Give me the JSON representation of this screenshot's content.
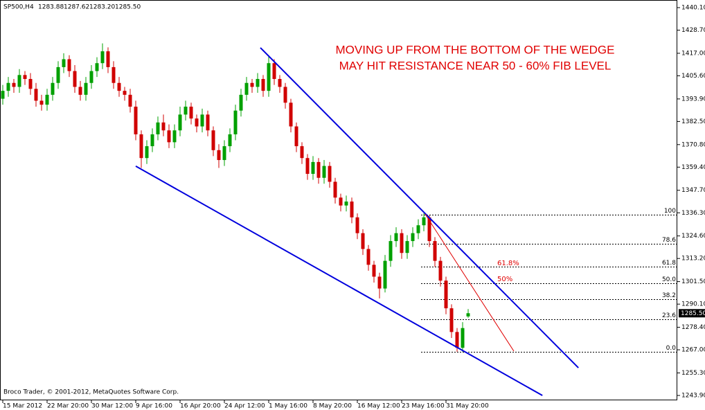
{
  "header": {
    "symbol": "SP500,H4",
    "open": "1283.88",
    "high": "1287.62",
    "low": "1283.20",
    "close": "1285.50"
  },
  "footer": "Broco Trader, © 2001-2012, MetaQuotes Software Corp.",
  "chart_data": {
    "type": "candlestick",
    "up_color": "#00a000",
    "down_color": "#d00000",
    "annotations": [
      "MOVING UP FROM THE BOTTOM OF THE WEDGE",
      "MAY HIT RESISTANCE NEAR 50 - 60% FIB LEVEL",
      "61.8%",
      "50%"
    ],
    "categories": [
      "15 Mar 2012",
      null,
      null,
      null,
      null,
      null,
      null,
      null,
      "22 Mar 20:00",
      null,
      null,
      null,
      null,
      null,
      null,
      null,
      "30 Mar 12:00",
      null,
      null,
      null,
      null,
      null,
      null,
      null,
      "9 Apr 16:00",
      null,
      null,
      null,
      null,
      null,
      null,
      null,
      "16 Apr 20:00",
      null,
      null,
      null,
      null,
      null,
      null,
      null,
      "24 Apr 12:00",
      null,
      null,
      null,
      null,
      null,
      null,
      null,
      "1 May 16:00",
      null,
      null,
      null,
      null,
      null,
      null,
      null,
      "8 May 20:00",
      null,
      null,
      null,
      null,
      null,
      null,
      null,
      "16 May 12:00",
      null,
      null,
      null,
      null,
      null,
      null,
      null,
      "23 May 16:00",
      null,
      null,
      null,
      null,
      null,
      null,
      null,
      "31 May 20:00",
      null,
      null,
      null,
      null
    ],
    "open": [
      1394,
      1398,
      1402,
      1400,
      1406,
      1404,
      1399,
      1393,
      1391,
      1396,
      1402,
      1410,
      1414,
      1408,
      1400,
      1396,
      1402,
      1408,
      1412,
      1418,
      1410,
      1402,
      1398,
      1396,
      1390,
      1376,
      1364,
      1370,
      1376,
      1382,
      1378,
      1372,
      1378,
      1386,
      1390,
      1384,
      1380,
      1386,
      1378,
      1368,
      1363,
      1370,
      1376,
      1388,
      1396,
      1402,
      1400,
      1404,
      1398,
      1412,
      1404,
      1400,
      1392,
      1380,
      1370,
      1364,
      1356,
      1362,
      1354,
      1360,
      1352,
      1344,
      1340,
      1342,
      1334,
      1326,
      1318,
      1310,
      1304,
      1298,
      1312,
      1322,
      1326,
      1316,
      1322,
      1326,
      1330,
      1334,
      1322,
      1312,
      1302,
      1288,
      1276,
      1268,
      1283.88
    ],
    "high": [
      1401,
      1405,
      1404,
      1409,
      1408,
      1407,
      1402,
      1396,
      1399,
      1405,
      1413,
      1417,
      1416,
      1411,
      1403,
      1405,
      1411,
      1415,
      1422,
      1420,
      1413,
      1405,
      1400,
      1399,
      1393,
      1378,
      1373,
      1379,
      1385,
      1386,
      1381,
      1381,
      1390,
      1393,
      1392,
      1386,
      1389,
      1388,
      1380,
      1371,
      1373,
      1379,
      1391,
      1399,
      1405,
      1404,
      1407,
      1406,
      1416,
      1414,
      1406,
      1402,
      1394,
      1382,
      1372,
      1366,
      1365,
      1364,
      1363,
      1362,
      1354,
      1346,
      1345,
      1344,
      1336,
      1328,
      1320,
      1312,
      1306,
      1315,
      1325,
      1329,
      1328,
      1325,
      1329,
      1333,
      1336,
      1335,
      1324,
      1314,
      1304,
      1290,
      1278,
      1281,
      1287.62
    ],
    "low": [
      1391,
      1395,
      1397,
      1397,
      1401,
      1396,
      1390,
      1388,
      1388,
      1393,
      1399,
      1407,
      1405,
      1397,
      1393,
      1393,
      1399,
      1405,
      1409,
      1407,
      1399,
      1395,
      1393,
      1387,
      1373,
      1359,
      1361,
      1367,
      1373,
      1375,
      1369,
      1369,
      1375,
      1383,
      1381,
      1377,
      1377,
      1375,
      1365,
      1359,
      1360,
      1367,
      1373,
      1385,
      1393,
      1397,
      1397,
      1395,
      1395,
      1401,
      1397,
      1389,
      1377,
      1367,
      1361,
      1353,
      1353,
      1351,
      1351,
      1349,
      1341,
      1337,
      1337,
      1331,
      1323,
      1315,
      1307,
      1301,
      1293,
      1296,
      1309,
      1319,
      1313,
      1313,
      1319,
      1323,
      1327,
      1319,
      1309,
      1299,
      1285,
      1273,
      1266,
      1266,
      1283.2
    ],
    "close": [
      1398,
      1402,
      1400,
      1406,
      1404,
      1399,
      1393,
      1391,
      1396,
      1402,
      1410,
      1414,
      1408,
      1400,
      1396,
      1402,
      1408,
      1412,
      1418,
      1410,
      1402,
      1398,
      1396,
      1390,
      1376,
      1364,
      1370,
      1376,
      1382,
      1378,
      1372,
      1378,
      1386,
      1390,
      1384,
      1380,
      1386,
      1378,
      1368,
      1363,
      1370,
      1376,
      1388,
      1396,
      1402,
      1400,
      1404,
      1398,
      1412,
      1404,
      1400,
      1392,
      1380,
      1370,
      1364,
      1356,
      1362,
      1354,
      1360,
      1352,
      1344,
      1340,
      1342,
      1334,
      1326,
      1318,
      1310,
      1304,
      1298,
      1312,
      1322,
      1326,
      1316,
      1322,
      1326,
      1330,
      1334,
      1322,
      1312,
      1302,
      1288,
      1276,
      1268,
      1278,
      1285.5
    ],
    "ylim": [
      1241.45,
      1443.6
    ],
    "yticks": [
      {
        "value": 1440.1,
        "label": "1440.10"
      },
      {
        "value": 1428.7,
        "label": "1428.70"
      },
      {
        "value": 1417,
        "label": "1417.00"
      },
      {
        "value": 1405.6,
        "label": "1405.60"
      },
      {
        "value": 1393.9,
        "label": "1393.90"
      },
      {
        "value": 1382.5,
        "label": "1382.50"
      },
      {
        "value": 1370.8,
        "label": "1370.80"
      },
      {
        "value": 1359.4,
        "label": "1359.40"
      },
      {
        "value": 1347.7,
        "label": "1347.70"
      },
      {
        "value": 1336.3,
        "label": "1336.30"
      },
      {
        "value": 1324.6,
        "label": "1324.60"
      },
      {
        "value": 1313.2,
        "label": "1313.20"
      },
      {
        "value": 1301.5,
        "label": "1301.50"
      },
      {
        "value": 1290.1,
        "label": "1290.10"
      },
      {
        "value": 1278.4,
        "label": "1278.40"
      },
      {
        "value": 1267,
        "label": "1267.00"
      },
      {
        "value": 1255.3,
        "label": "1255.30"
      },
      {
        "value": 1243.9,
        "label": "1243.90"
      }
    ],
    "fib_levels": [
      {
        "value": 1335.5,
        "label": "100"
      },
      {
        "value": 1320.63,
        "label": "78.6"
      },
      {
        "value": 1308.95,
        "label": "61.8"
      },
      {
        "value": 1300.75,
        "label": "50.0"
      },
      {
        "value": 1292.55,
        "label": "38.2"
      },
      {
        "value": 1282.4,
        "label": "23.6"
      },
      {
        "value": 1266,
        "label": "0.0"
      }
    ],
    "trendlines": [
      {
        "color": "#0000dd",
        "x": [
          46.5,
          103.9
        ],
        "values": [
          1419.8,
          1257.9
        ]
      },
      {
        "color": "#0000dd",
        "x": [
          24,
          97.4
        ],
        "values": [
          1359.9,
          1243.9
        ]
      },
      {
        "color": "#e00000",
        "x": [
          76.25,
          92.25
        ],
        "values": [
          1335.6,
          1266.3
        ]
      }
    ]
  }
}
